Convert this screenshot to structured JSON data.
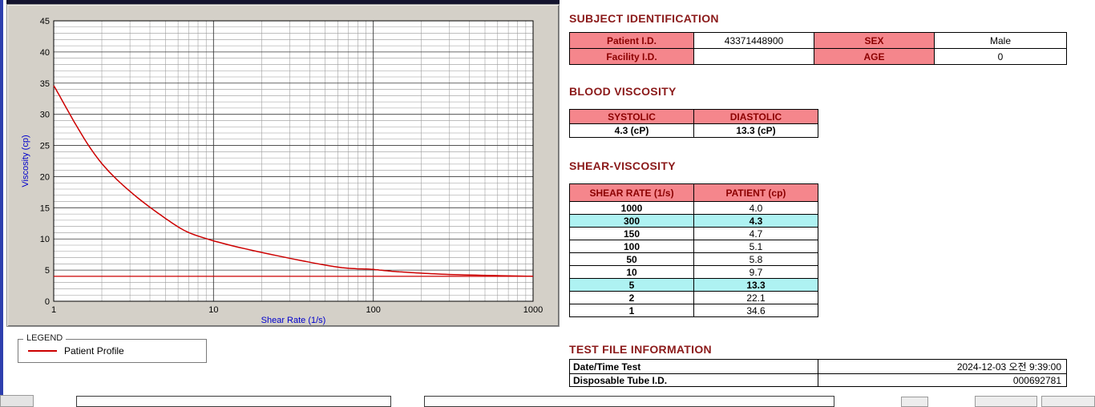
{
  "window": {
    "background": "#ffffff"
  },
  "chart": {
    "legend_title": "LEGEND",
    "legend_series_label": "Patient Profile"
  },
  "chart_data": {
    "type": "line",
    "title": "",
    "xlabel": "Shear Rate (1/s)",
    "ylabel": "Viscosity (cp)",
    "x_scale": "log",
    "xlim": [
      1,
      1000
    ],
    "ylim": [
      0,
      45
    ],
    "x_ticks": [
      1,
      10,
      100,
      1000
    ],
    "y_ticks": [
      0,
      5,
      10,
      15,
      20,
      25,
      30,
      35,
      40,
      45
    ],
    "grid": true,
    "series": [
      {
        "name": "Patient Profile",
        "x": [
          1,
          2,
          5,
          10,
          50,
          100,
          150,
          300,
          1000
        ],
        "y": [
          34.6,
          22.1,
          13.3,
          9.7,
          5.8,
          5.1,
          4.7,
          4.3,
          4.0
        ],
        "color": "#cc0000"
      }
    ],
    "reference_line_y": 4.0,
    "legend_position": "below-left"
  },
  "subject": {
    "title": "SUBJECT IDENTIFICATION",
    "rows": [
      {
        "label1": "Patient I.D.",
        "value1": "43371448900",
        "label2": "SEX",
        "value2": "Male"
      },
      {
        "label1": "Facility I.D.",
        "value1": "",
        "label2": "AGE",
        "value2": "0"
      }
    ]
  },
  "blood_viscosity": {
    "title": "BLOOD VISCOSITY",
    "headers": [
      "SYSTOLIC",
      "DIASTOLIC"
    ],
    "values": [
      "4.3 (cP)",
      "13.3 (cP)"
    ]
  },
  "shear_viscosity": {
    "title": "SHEAR-VISCOSITY",
    "headers": [
      "SHEAR RATE (1/s)",
      "PATIENT (cp)"
    ],
    "rows": [
      {
        "rate": "1000",
        "value": "4.0",
        "highlight": false
      },
      {
        "rate": "300",
        "value": "4.3",
        "highlight": true
      },
      {
        "rate": "150",
        "value": "4.7",
        "highlight": false
      },
      {
        "rate": "100",
        "value": "5.1",
        "highlight": false
      },
      {
        "rate": "50",
        "value": "5.8",
        "highlight": false
      },
      {
        "rate": "10",
        "value": "9.7",
        "highlight": false
      },
      {
        "rate": "5",
        "value": "13.3",
        "highlight": true
      },
      {
        "rate": "2",
        "value": "22.1",
        "highlight": false
      },
      {
        "rate": "1",
        "value": "34.6",
        "highlight": false
      }
    ]
  },
  "test_file": {
    "title": "TEST FILE INFORMATION",
    "rows": [
      {
        "label": "Date/Time Test",
        "value": "2024-12-03  오전 9:39:00"
      },
      {
        "label": "Disposable Tube I.D.",
        "value": "000692781"
      }
    ]
  },
  "colors": {
    "header_pink": "#f5868c",
    "highlight_cyan": "#aef2f2",
    "section_heading": "#8b1a1a",
    "curve_red": "#cc0000",
    "axis_label_blue": "#0000cc",
    "panel_gray": "#d4d0c8",
    "top_strip_navy": "#14142e",
    "left_strip_blue": "#2e3fae"
  }
}
